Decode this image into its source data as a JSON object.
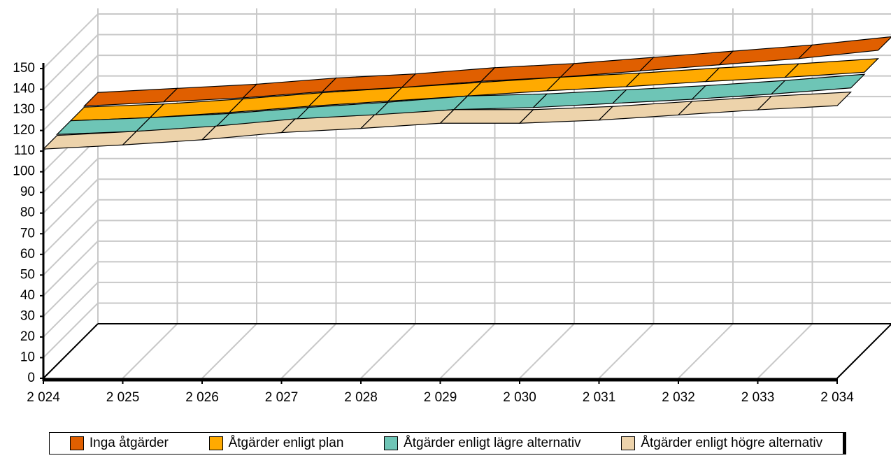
{
  "chart_data": {
    "type": "ribbon3d",
    "categories": [
      "2 024",
      "2 025",
      "2 026",
      "2 027",
      "2 028",
      "2 029",
      "2 030",
      "2 031",
      "2 032",
      "2 033",
      "2 034"
    ],
    "series": [
      {
        "name": "Inga åtgärder",
        "color": "#e05f00",
        "values": [
          112,
          114,
          116,
          119,
          121,
          124,
          126,
          129,
          132,
          135,
          139
        ]
      },
      {
        "name": "Åtgärder enligt plan",
        "color": "#ffaa00",
        "values": [
          111.5,
          113,
          115.5,
          118.5,
          121,
          123.5,
          126,
          128,
          130.5,
          132.5,
          135
        ]
      },
      {
        "name": "Åtgärder enligt lägre alternativ",
        "color": "#6ec5b6",
        "values": [
          111.5,
          113,
          115,
          118,
          120.5,
          123.5,
          124.5,
          126.5,
          128.5,
          131,
          134
        ]
      },
      {
        "name": "Åtgärder enligt högre alternativ",
        "color": "#edd3ab",
        "values": [
          111,
          113,
          115.5,
          119,
          121,
          123.5,
          123.5,
          125,
          127.5,
          130,
          132
        ]
      }
    ],
    "ylim": [
      0,
      150
    ],
    "yticks": [
      0,
      10,
      20,
      30,
      40,
      50,
      60,
      70,
      80,
      90,
      100,
      110,
      120,
      130,
      140,
      150
    ],
    "grid": true,
    "legend": "bottom"
  }
}
